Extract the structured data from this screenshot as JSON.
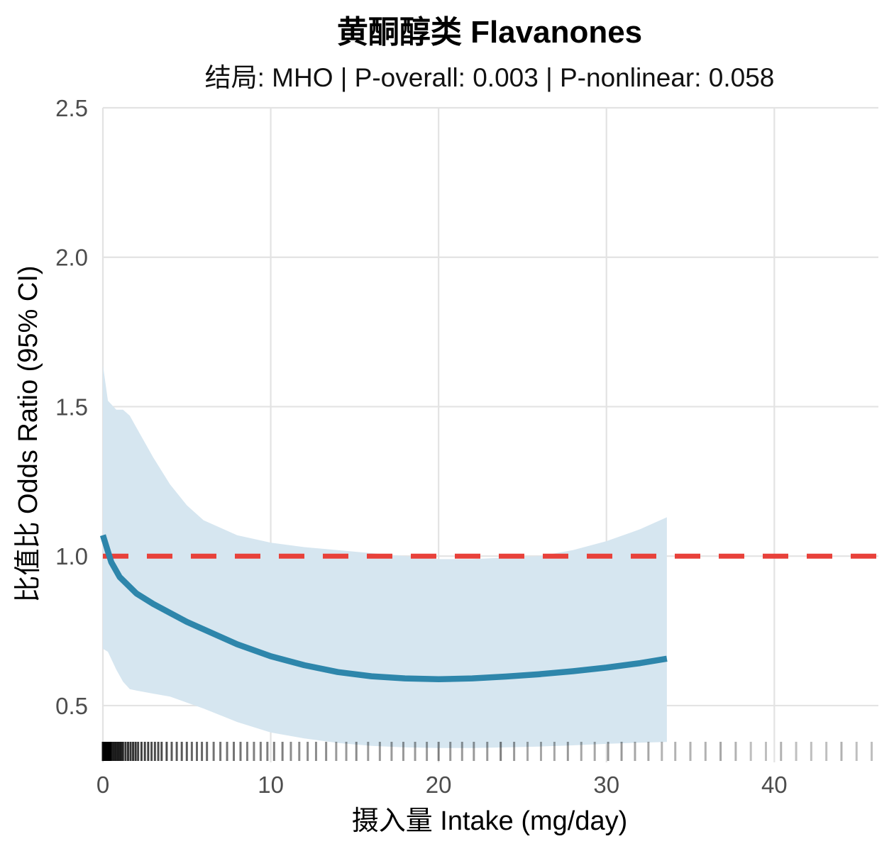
{
  "chart_data": {
    "type": "line",
    "title": "黄酮醇类 Flavanones",
    "subtitle": "结局: MHO | P-overall: 0.003 | P-nonlinear: 0.058",
    "xlabel": "摄入量 Intake (mg/day)",
    "ylabel": "比值比 Odds Ratio (95% CI)",
    "xlim": [
      0,
      46.2
    ],
    "ylim": [
      0.31,
      2.5
    ],
    "x_ticks": [
      0,
      10,
      20,
      30,
      40
    ],
    "y_ticks": [
      0.5,
      1.0,
      1.5,
      2.0,
      2.5
    ],
    "x_tick_labels": [
      "0",
      "10",
      "20",
      "30",
      "40"
    ],
    "y_tick_labels": [
      "0.5",
      "1.0",
      "1.5",
      "2.0",
      "2.5"
    ],
    "grid": true,
    "reference_line": {
      "y": 1.0,
      "style": "dashed",
      "color": "#e8413a"
    },
    "series": [
      {
        "role": "estimate",
        "color": "#2e86ab",
        "x": [
          0,
          0.5,
          1,
          2,
          3,
          4,
          5,
          6,
          8,
          10,
          12,
          14,
          16,
          18,
          20,
          22,
          24,
          26,
          28,
          30,
          32,
          33.6
        ],
        "y": [
          1.07,
          0.98,
          0.93,
          0.875,
          0.84,
          0.81,
          0.78,
          0.755,
          0.705,
          0.665,
          0.635,
          0.612,
          0.598,
          0.591,
          0.588,
          0.591,
          0.597,
          0.605,
          0.615,
          0.627,
          0.642,
          0.657
        ]
      },
      {
        "role": "ci_band",
        "color": "#d6e6f0",
        "x": [
          0,
          0.3,
          0.8,
          1.2,
          1.6,
          2,
          3,
          4,
          5,
          6,
          8,
          10,
          12,
          14,
          16,
          18,
          20,
          22,
          24,
          26,
          28,
          30,
          32,
          33.6
        ],
        "upper": [
          1.64,
          1.52,
          1.49,
          1.49,
          1.47,
          1.43,
          1.33,
          1.24,
          1.17,
          1.12,
          1.07,
          1.045,
          1.03,
          1.02,
          1.01,
          1.0,
          0.99,
          0.99,
          0.995,
          1.0,
          1.02,
          1.05,
          1.09,
          1.13
        ],
        "lower": [
          0.69,
          0.68,
          0.62,
          0.58,
          0.555,
          0.55,
          0.54,
          0.53,
          0.51,
          0.49,
          0.445,
          0.41,
          0.39,
          0.375,
          0.365,
          0.36,
          0.358,
          0.358,
          0.36,
          0.363,
          0.367,
          0.372,
          0.376,
          0.378
        ]
      }
    ],
    "rug": {
      "color": "#000000",
      "x": [
        0,
        0.05,
        0.1,
        0.15,
        0.2,
        0.25,
        0.3,
        0.35,
        0.4,
        0.45,
        0.5,
        0.6,
        0.7,
        0.8,
        0.9,
        1.0,
        1.1,
        1.2,
        1.35,
        1.5,
        1.65,
        1.8,
        1.95,
        2.1,
        2.3,
        2.5,
        2.7,
        2.9,
        3.1,
        3.3,
        3.5,
        3.8,
        4.1,
        4.4,
        4.7,
        5.0,
        5.3,
        5.6,
        5.9,
        6.2,
        6.6,
        7.0,
        7.4,
        7.8,
        8.2,
        8.6,
        9.0,
        9.4,
        9.8,
        10.2,
        10.7,
        11.2,
        11.7,
        12.2,
        12.7,
        13.3,
        13.9,
        14.5,
        15.1,
        15.8,
        16.5,
        17.2,
        17.9,
        18.6,
        19.3,
        20.0,
        20.7,
        21.4,
        22.1,
        22.9,
        23.7,
        24.5,
        25.3,
        26.1,
        26.9,
        27.7,
        28.5,
        29.3,
        30.1,
        30.9,
        31.7,
        32.5,
        33.3,
        34.1,
        35.0,
        35.9,
        36.8,
        37.7,
        38.6,
        39.5,
        40.4,
        41.3,
        42.2,
        43.1,
        44.0,
        44.9,
        45.8
      ],
      "opacity": [
        0.9,
        0.9,
        0.9,
        0.9,
        0.9,
        0.9,
        0.9,
        0.9,
        0.9,
        0.9,
        0.85,
        0.85,
        0.85,
        0.85,
        0.85,
        0.85,
        0.85,
        0.8,
        0.8,
        0.8,
        0.8,
        0.8,
        0.8,
        0.75,
        0.75,
        0.75,
        0.75,
        0.7,
        0.7,
        0.7,
        0.7,
        0.7,
        0.65,
        0.65,
        0.65,
        0.65,
        0.6,
        0.6,
        0.6,
        0.6,
        0.55,
        0.55,
        0.55,
        0.55,
        0.55,
        0.5,
        0.5,
        0.5,
        0.5,
        0.5,
        0.5,
        0.45,
        0.45,
        0.45,
        0.45,
        0.45,
        0.4,
        0.4,
        0.45,
        0.4,
        0.4,
        0.4,
        0.4,
        0.4,
        0.4,
        0.45,
        0.4,
        0.4,
        0.4,
        0.4,
        0.5,
        0.4,
        0.35,
        0.35,
        0.35,
        0.4,
        0.35,
        0.35,
        0.4,
        0.4,
        0.35,
        0.35,
        0.3,
        0.3,
        0.3,
        0.3,
        0.35,
        0.3,
        0.25,
        0.25,
        0.3,
        0.25,
        0.25,
        0.25,
        0.3,
        0.25,
        0.25
      ]
    }
  }
}
